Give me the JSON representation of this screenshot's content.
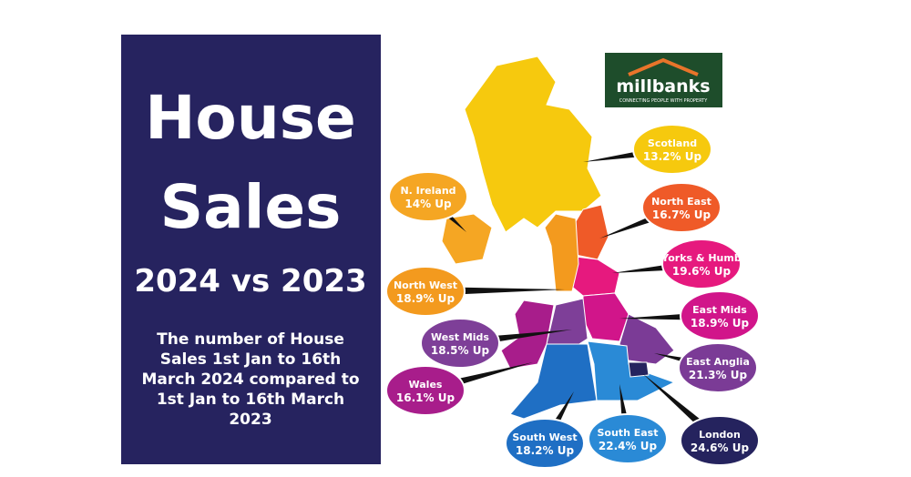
{
  "header": {
    "title_lines": [
      "House",
      "Sales"
    ],
    "subtitle": "2024 vs 2023",
    "description_lines": [
      "The number of House",
      "Sales 1st Jan to 16th",
      "March 2024 compared to",
      "1st Jan to 16th March",
      "2023"
    ]
  },
  "logo": {
    "name": "millbanks",
    "tagline": "CONNECTING PEOPLE WITH PROPERTY"
  },
  "regions": [
    {
      "name": "Scotland",
      "change": "13.2% Up",
      "color": "#f6c90e"
    },
    {
      "name": "N. Ireland",
      "change": "14% Up",
      "color": "#f5a623"
    },
    {
      "name": "North East",
      "change": "16.7% Up",
      "color": "#ef5a28"
    },
    {
      "name": "Yorks & Humb",
      "change": "19.6% Up",
      "color": "#e6197e"
    },
    {
      "name": "North West",
      "change": "18.9% Up",
      "color": "#f39a1e"
    },
    {
      "name": "East Mids",
      "change": "18.9% Up",
      "color": "#d1158a"
    },
    {
      "name": "West Mids",
      "change": "18.5% Up",
      "color": "#7e3f98"
    },
    {
      "name": "East Anglia",
      "change": "21.3% Up",
      "color": "#7b3b96"
    },
    {
      "name": "Wales",
      "change": "16.1% Up",
      "color": "#a81d8b"
    },
    {
      "name": "South West",
      "change": "18.2% Up",
      "color": "#1f6fc4"
    },
    {
      "name": "South East",
      "change": "22.4% Up",
      "color": "#2a8ad6"
    },
    {
      "name": "London",
      "change": "24.6% Up",
      "color": "#25235e"
    }
  ]
}
